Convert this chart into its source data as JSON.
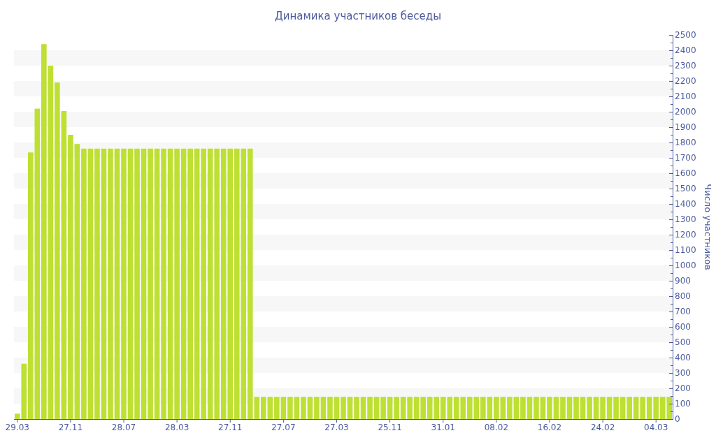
{
  "chart_data": {
    "type": "bar",
    "title": "Динамика участников беседы",
    "ylabel": "Число участников",
    "categories": [
      "29.03",
      null,
      null,
      null,
      null,
      null,
      null,
      null,
      "27.11",
      null,
      null,
      null,
      null,
      null,
      null,
      null,
      "28.07",
      null,
      null,
      null,
      null,
      null,
      null,
      null,
      "28.03",
      null,
      null,
      null,
      null,
      null,
      null,
      null,
      "27.11",
      null,
      null,
      null,
      null,
      null,
      null,
      null,
      "27.07",
      null,
      null,
      null,
      null,
      null,
      null,
      null,
      "27.03",
      null,
      null,
      null,
      null,
      null,
      null,
      null,
      "25.11",
      null,
      null,
      null,
      null,
      null,
      null,
      null,
      "31.01",
      null,
      null,
      null,
      null,
      null,
      null,
      null,
      "08.02",
      null,
      null,
      null,
      null,
      null,
      null,
      null,
      "16.02",
      null,
      null,
      null,
      null,
      null,
      null,
      null,
      "24.02",
      null,
      null,
      null,
      null,
      null,
      null,
      null,
      "04.03",
      null,
      null
    ],
    "values": [
      35,
      360,
      1735,
      2020,
      2440,
      2300,
      2190,
      2005,
      1850,
      1790,
      1760,
      1760,
      1760,
      1760,
      1760,
      1760,
      1760,
      1760,
      1760,
      1760,
      1760,
      1760,
      1760,
      1760,
      1760,
      1760,
      1760,
      1760,
      1760,
      1760,
      1760,
      1760,
      1760,
      1760,
      1760,
      1760,
      145,
      145,
      145,
      145,
      145,
      145,
      145,
      145,
      145,
      145,
      145,
      145,
      145,
      145,
      145,
      145,
      145,
      145,
      145,
      145,
      145,
      145,
      145,
      145,
      145,
      145,
      145,
      145,
      145,
      145,
      145,
      145,
      145,
      145,
      145,
      145,
      145,
      145,
      145,
      145,
      145,
      145,
      145,
      145,
      145,
      145,
      145,
      145,
      145,
      145,
      145,
      145,
      145,
      145,
      145,
      145,
      145,
      145,
      145,
      145,
      145,
      145,
      145
    ],
    "color": "#bde032",
    "ylim": [
      0,
      2500
    ],
    "yticks": [
      0,
      {
        "value": 50,
        "label": null
      },
      100,
      {
        "value": 150,
        "label": null
      },
      200,
      {
        "value": 250,
        "label": null
      },
      300,
      {
        "value": 350,
        "label": null
      },
      400,
      {
        "value": 450,
        "label": null
      },
      500,
      {
        "value": 550,
        "label": null
      },
      600,
      {
        "value": 650,
        "label": null
      },
      700,
      {
        "value": 750,
        "label": null
      },
      800,
      {
        "value": 850,
        "label": null
      },
      900,
      {
        "value": 950,
        "label": null
      },
      1000,
      {
        "value": 1050,
        "label": null
      },
      1100,
      {
        "value": 1150,
        "label": null
      },
      1200,
      {
        "value": 1250,
        "label": null
      },
      1300,
      {
        "value": 1350,
        "label": null
      },
      1400,
      {
        "value": 1450,
        "label": null
      },
      1500,
      {
        "value": 1550,
        "label": null
      },
      1600,
      {
        "value": 1650,
        "label": null
      },
      1700,
      {
        "value": 1750,
        "label": null
      },
      1800,
      {
        "value": 1850,
        "label": null
      },
      1900,
      {
        "value": 1950,
        "label": null
      },
      2000,
      {
        "value": 2050,
        "label": null
      },
      2100,
      {
        "value": 2150,
        "label": null
      },
      2200,
      {
        "value": 2250,
        "label": null
      },
      2300,
      {
        "value": 2350,
        "label": null
      },
      2400,
      {
        "value": 2450,
        "label": null
      },
      2500
    ],
    "bands": [
      {
        "axis": "y",
        "from": 100,
        "to": 200,
        "color": "#f7f7f7"
      },
      {
        "axis": "y",
        "from": 300,
        "to": 400,
        "color": "#f7f7f7"
      },
      {
        "axis": "y",
        "from": 500,
        "to": 600,
        "color": "#f7f7f7"
      },
      {
        "axis": "y",
        "from": 700,
        "to": 800,
        "color": "#f7f7f7"
      },
      {
        "axis": "y",
        "from": 900,
        "to": 1000,
        "color": "#f7f7f7"
      },
      {
        "axis": "y",
        "from": 1100,
        "to": 1200,
        "color": "#f7f7f7"
      },
      {
        "axis": "y",
        "from": 1300,
        "to": 1400,
        "color": "#f7f7f7"
      },
      {
        "axis": "y",
        "from": 1500,
        "to": 1600,
        "color": "#f7f7f7"
      },
      {
        "axis": "y",
        "from": 1700,
        "to": 1800,
        "color": "#f7f7f7"
      },
      {
        "axis": "y",
        "from": 1900,
        "to": 2000,
        "color": "#f7f7f7"
      },
      {
        "axis": "y",
        "from": 2100,
        "to": 2200,
        "color": "#f7f7f7"
      },
      {
        "axis": "y",
        "from": 2300,
        "to": 2400,
        "color": "#f7f7f7"
      }
    ]
  }
}
